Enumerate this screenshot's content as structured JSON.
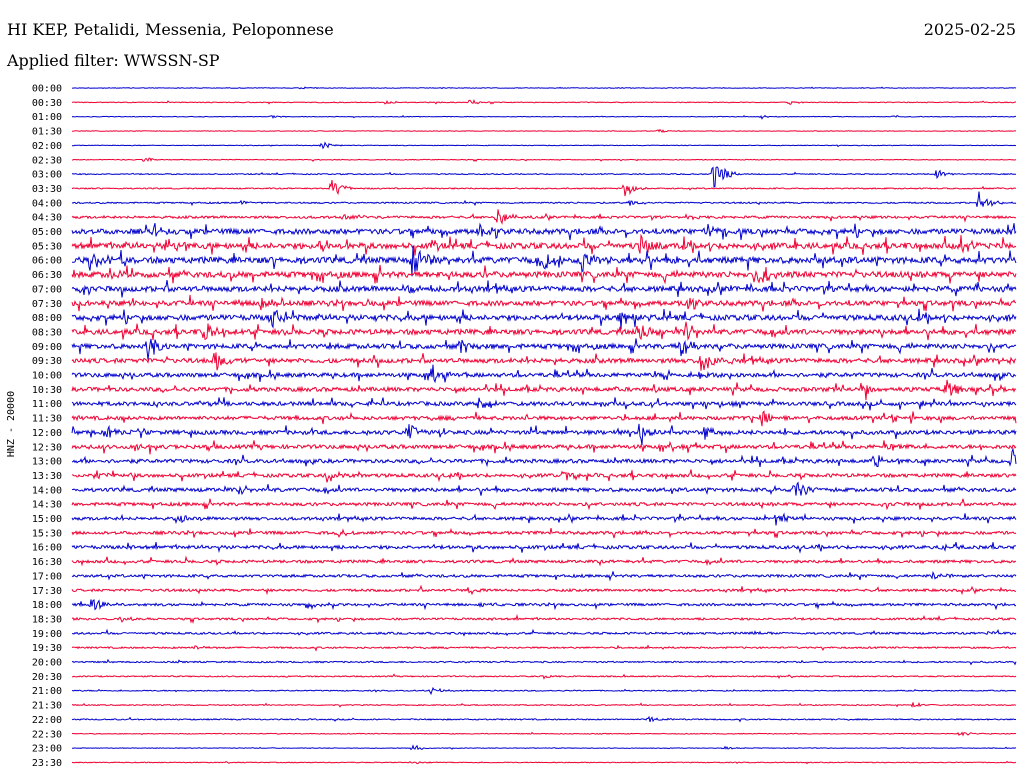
{
  "header": {
    "station": "HI KEP, Petalidi, Messenia, Peloponnese",
    "date": "2025-02-25",
    "filter": "Applied filter: WWSSN-SP"
  },
  "chart_data": {
    "type": "line",
    "ylabel": "HNZ - 20000",
    "row_labels": [
      "00:00",
      "00:30",
      "01:00",
      "01:30",
      "02:00",
      "02:30",
      "03:00",
      "03:30",
      "04:00",
      "04:30",
      "05:00",
      "05:30",
      "06:00",
      "06:30",
      "07:00",
      "07:30",
      "08:00",
      "08:30",
      "09:00",
      "09:30",
      "10:00",
      "10:30",
      "11:00",
      "11:30",
      "12:00",
      "12:30",
      "13:00",
      "13:30",
      "14:00",
      "14:30",
      "15:00",
      "15:30",
      "16:00",
      "16:30",
      "17:00",
      "17:30",
      "18:00",
      "18:30",
      "19:00",
      "19:30",
      "20:00",
      "20:30",
      "21:00",
      "21:30",
      "22:00",
      "22:30",
      "23:00",
      "23:30"
    ],
    "colors": [
      "#0000cc",
      "#ee0033"
    ],
    "noise_level": [
      0.3,
      0.4,
      0.3,
      0.3,
      0.3,
      0.4,
      0.5,
      0.6,
      0.7,
      1.2,
      2.5,
      2.8,
      3.0,
      2.8,
      2.6,
      2.4,
      2.6,
      2.5,
      2.3,
      2.2,
      2.0,
      2.0,
      1.9,
      1.8,
      2.0,
      1.9,
      1.8,
      1.7,
      1.8,
      1.6,
      1.5,
      1.5,
      1.6,
      1.4,
      1.3,
      1.2,
      1.2,
      1.0,
      1.0,
      0.8,
      0.7,
      0.6,
      0.5,
      0.5,
      0.6,
      0.4,
      0.3,
      0.4
    ],
    "events": [
      {
        "row": 0,
        "t": 0.243,
        "amp": 1.5
      },
      {
        "row": 1,
        "t": 0.33,
        "amp": 3
      },
      {
        "row": 1,
        "t": 0.42,
        "amp": 4
      },
      {
        "row": 1,
        "t": 0.76,
        "amp": 2
      },
      {
        "row": 2,
        "t": 0.21,
        "amp": 1.5
      },
      {
        "row": 2,
        "t": 0.73,
        "amp": 2
      },
      {
        "row": 2,
        "t": 0.87,
        "amp": 1.5
      },
      {
        "row": 3,
        "t": 0.62,
        "amp": 2
      },
      {
        "row": 4,
        "t": 0.264,
        "amp": 4
      },
      {
        "row": 5,
        "t": 0.077,
        "amp": 3
      },
      {
        "row": 6,
        "t": 0.68,
        "amp": 16
      },
      {
        "row": 6,
        "t": 0.915,
        "amp": 5
      },
      {
        "row": 7,
        "t": 0.275,
        "amp": 10
      },
      {
        "row": 7,
        "t": 0.585,
        "amp": 9
      },
      {
        "row": 8,
        "t": 0.175,
        "amp": 3
      },
      {
        "row": 8,
        "t": 0.59,
        "amp": 4
      },
      {
        "row": 8,
        "t": 0.96,
        "amp": 12
      },
      {
        "row": 9,
        "t": 0.29,
        "amp": 4
      },
      {
        "row": 9,
        "t": 0.45,
        "amp": 12
      },
      {
        "row": 9,
        "t": 0.65,
        "amp": 4
      },
      {
        "row": 10,
        "t": 0.08,
        "amp": 14
      },
      {
        "row": 10,
        "t": 0.43,
        "amp": 12
      },
      {
        "row": 10,
        "t": 0.67,
        "amp": 10
      },
      {
        "row": 11,
        "t": 0.1,
        "amp": 10
      },
      {
        "row": 11,
        "t": 0.26,
        "amp": 10
      },
      {
        "row": 11,
        "t": 0.6,
        "amp": 14
      },
      {
        "row": 11,
        "t": 0.94,
        "amp": 10
      },
      {
        "row": 12,
        "t": 0.025,
        "amp": 9
      },
      {
        "row": 12,
        "t": 0.36,
        "amp": 20
      },
      {
        "row": 12,
        "t": 0.5,
        "amp": 12
      },
      {
        "row": 12,
        "t": 0.54,
        "amp": 14
      },
      {
        "row": 13,
        "t": 0.73,
        "amp": 12
      },
      {
        "row": 13,
        "t": 0.04,
        "amp": 6
      },
      {
        "row": 14,
        "t": 0.01,
        "amp": 10
      },
      {
        "row": 14,
        "t": 0.35,
        "amp": 6
      },
      {
        "row": 15,
        "t": 0.2,
        "amp": 10
      },
      {
        "row": 15,
        "t": 0.65,
        "amp": 8
      },
      {
        "row": 16,
        "t": 0.21,
        "amp": 12
      },
      {
        "row": 16,
        "t": 0.58,
        "amp": 16
      },
      {
        "row": 17,
        "t": 0.14,
        "amp": 14
      },
      {
        "row": 17,
        "t": 0.6,
        "amp": 12
      },
      {
        "row": 17,
        "t": 0.65,
        "amp": 10
      },
      {
        "row": 18,
        "t": 0.08,
        "amp": 16
      },
      {
        "row": 18,
        "t": 0.41,
        "amp": 10
      },
      {
        "row": 18,
        "t": 0.645,
        "amp": 14
      },
      {
        "row": 19,
        "t": 0.15,
        "amp": 12
      },
      {
        "row": 19,
        "t": 0.665,
        "amp": 14
      },
      {
        "row": 19,
        "t": 0.98,
        "amp": 4
      },
      {
        "row": 20,
        "t": 0.38,
        "amp": 8
      },
      {
        "row": 20,
        "t": 0.665,
        "amp": 5
      },
      {
        "row": 21,
        "t": 0.925,
        "amp": 14
      },
      {
        "row": 21,
        "t": 0.84,
        "amp": 5
      },
      {
        "row": 22,
        "t": 0.43,
        "amp": 6
      },
      {
        "row": 22,
        "t": 0.9,
        "amp": 6
      },
      {
        "row": 23,
        "t": 0.73,
        "amp": 10
      },
      {
        "row": 23,
        "t": 0.87,
        "amp": 6
      },
      {
        "row": 24,
        "t": 0.035,
        "amp": 8
      },
      {
        "row": 24,
        "t": 0.355,
        "amp": 10
      },
      {
        "row": 24,
        "t": 0.6,
        "amp": 10
      },
      {
        "row": 24,
        "t": 0.67,
        "amp": 8
      },
      {
        "row": 25,
        "t": 0.065,
        "amp": 8
      },
      {
        "row": 25,
        "t": 0.86,
        "amp": 6
      },
      {
        "row": 26,
        "t": 0.85,
        "amp": 8
      },
      {
        "row": 26,
        "t": 0.995,
        "amp": 18
      },
      {
        "row": 27,
        "t": 0.025,
        "amp": 8
      },
      {
        "row": 27,
        "t": 0.27,
        "amp": 8
      },
      {
        "row": 27,
        "t": 0.52,
        "amp": 6
      },
      {
        "row": 28,
        "t": 0.765,
        "amp": 14
      },
      {
        "row": 28,
        "t": 0.18,
        "amp": 4
      },
      {
        "row": 29,
        "t": 0.86,
        "amp": 6
      },
      {
        "row": 30,
        "t": 0.745,
        "amp": 8
      },
      {
        "row": 30,
        "t": 0.11,
        "amp": 6
      },
      {
        "row": 31,
        "t": 0.28,
        "amp": 5
      },
      {
        "row": 32,
        "t": 0.92,
        "amp": 4
      },
      {
        "row": 34,
        "t": 0.91,
        "amp": 7
      },
      {
        "row": 35,
        "t": 0.42,
        "amp": 5
      },
      {
        "row": 36,
        "t": 0.02,
        "amp": 8
      },
      {
        "row": 36,
        "t": 0.25,
        "amp": 6
      },
      {
        "row": 36,
        "t": 0.43,
        "amp": 3
      },
      {
        "row": 37,
        "t": 0.05,
        "amp": 4
      },
      {
        "row": 38,
        "t": 0.72,
        "amp": 3
      },
      {
        "row": 38,
        "t": 0.97,
        "amp": 3
      },
      {
        "row": 39,
        "t": 0.13,
        "amp": 3
      },
      {
        "row": 41,
        "t": 0.5,
        "amp": 2
      },
      {
        "row": 42,
        "t": 0.38,
        "amp": 4
      },
      {
        "row": 43,
        "t": 0.89,
        "amp": 3
      },
      {
        "row": 44,
        "t": 0.61,
        "amp": 4
      },
      {
        "row": 45,
        "t": 0.94,
        "amp": 3
      },
      {
        "row": 46,
        "t": 0.36,
        "amp": 4
      },
      {
        "row": 46,
        "t": 0.69,
        "amp": 2
      },
      {
        "row": 47,
        "t": 0.36,
        "amp": 2
      }
    ]
  }
}
